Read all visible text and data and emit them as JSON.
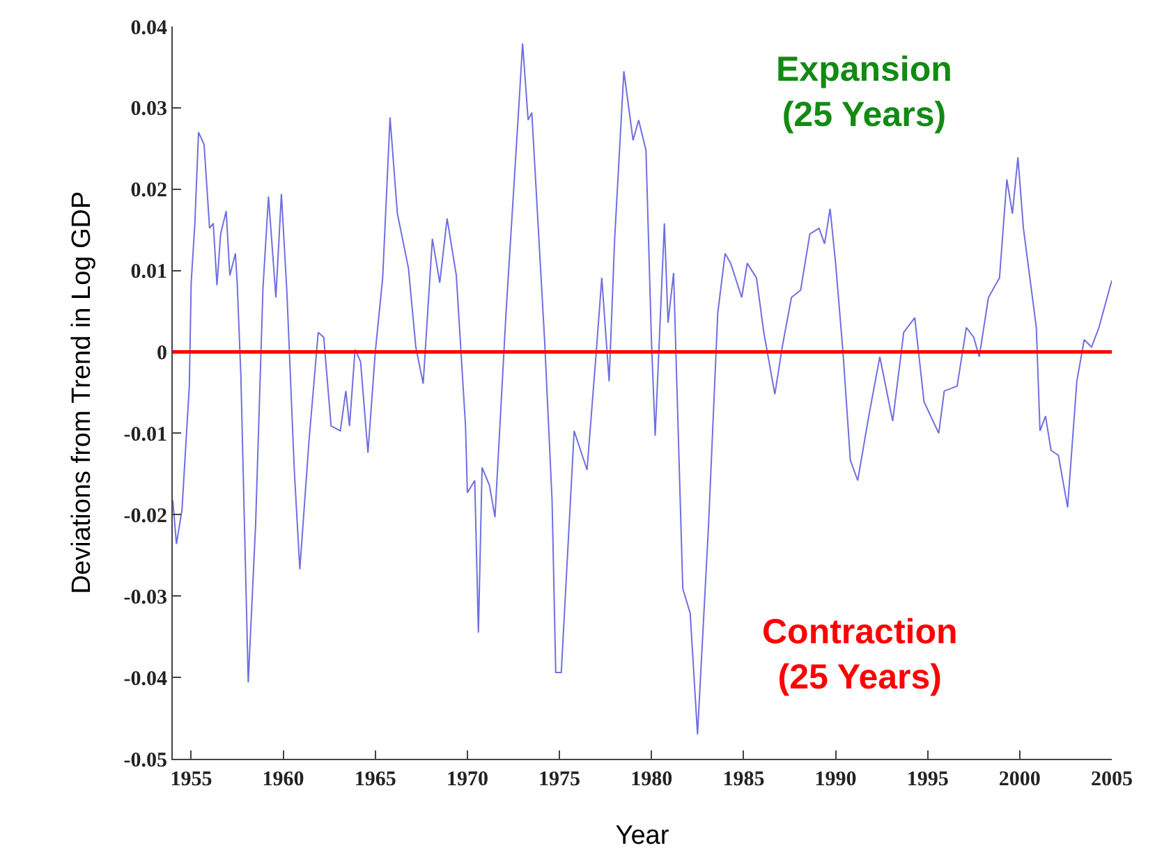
{
  "chart_data": {
    "type": "line",
    "xlabel": "Year",
    "ylabel": "Deviations from Trend in Log GDP",
    "annotations": [
      "Expansion\n(25 Years)",
      "Contraction\n(25 Years)"
    ],
    "x": [
      1954.0,
      1954.2,
      1954.5,
      1954.9,
      1955.0,
      1955.2,
      1955.4,
      1955.7,
      1956.0,
      1956.2,
      1956.4,
      1956.6,
      1956.9,
      1957.1,
      1957.4,
      1957.5,
      1957.7,
      1958.1,
      1958.5,
      1958.9,
      1959.2,
      1959.6,
      1959.9,
      1960.2,
      1960.6,
      1960.9,
      1961.4,
      1961.9,
      1962.2,
      1962.6,
      1963.1,
      1963.4,
      1963.6,
      1963.9,
      1964.2,
      1964.6,
      1965.0,
      1965.4,
      1965.8,
      1966.2,
      1966.8,
      1967.2,
      1967.6,
      1968.1,
      1968.5,
      1968.9,
      1969.4,
      1969.9,
      1970.0,
      1970.4,
      1970.6,
      1970.8,
      1971.2,
      1971.5,
      1972.1,
      1972.8,
      1973.0,
      1973.3,
      1973.5,
      1974.2,
      1974.6,
      1974.8,
      1975.1,
      1975.8,
      1976.5,
      1977.0,
      1977.3,
      1977.7,
      1978.0,
      1978.5,
      1979.0,
      1979.3,
      1979.7,
      1980.0,
      1980.2,
      1980.7,
      1980.9,
      1981.2,
      1981.7,
      1982.1,
      1982.5,
      1983.1,
      1983.6,
      1984.0,
      1984.3,
      1984.9,
      1985.2,
      1985.7,
      1986.1,
      1986.7,
      1987.1,
      1987.6,
      1988.1,
      1988.6,
      1989.1,
      1989.4,
      1989.7,
      1990.0,
      1990.4,
      1990.8,
      1991.2,
      1991.8,
      1992.4,
      1993.1,
      1993.7,
      1994.3,
      1994.8,
      1995.6,
      1995.9,
      1996.6,
      1997.1,
      1997.5,
      1997.8,
      1998.3,
      1998.9,
      1999.3,
      1999.6,
      1999.9,
      2000.2,
      2000.9,
      2001.1,
      2001.4,
      2001.7,
      2002.1,
      2002.6,
      2003.1,
      2003.5,
      2003.9,
      2004.3,
      2005.0
    ],
    "series": [
      {
        "color": "#6f6fe0",
        "values": [
          -0.0182,
          -0.0236,
          -0.0194,
          -0.0042,
          0.0085,
          0.0158,
          0.027,
          0.0255,
          0.0152,
          0.0158,
          0.0082,
          0.0145,
          0.0173,
          0.0094,
          0.0121,
          0.0085,
          -0.003,
          -0.0406,
          -0.0212,
          0.0079,
          0.0191,
          0.0067,
          0.0194,
          0.0073,
          -0.0145,
          -0.0267,
          -0.0109,
          0.0024,
          0.0018,
          -0.0091,
          -0.0097,
          -0.0048,
          -0.0091,
          0.0003,
          -0.0012,
          -0.0124,
          0.0,
          0.0091,
          0.0288,
          0.017,
          0.0103,
          0.0006,
          -0.0039,
          0.0139,
          0.0085,
          0.0164,
          0.0094,
          -0.0091,
          -0.0173,
          -0.0158,
          -0.0345,
          -0.0142,
          -0.0164,
          -0.0203,
          0.0048,
          0.0303,
          0.0379,
          0.0285,
          0.0294,
          0.0012,
          -0.0182,
          -0.0394,
          -0.0394,
          -0.0097,
          -0.0145,
          0.0,
          0.0091,
          -0.0036,
          0.0139,
          0.0345,
          0.026,
          0.0285,
          0.0248,
          0.0012,
          -0.0103,
          0.0158,
          0.0036,
          0.0097,
          -0.0291,
          -0.0321,
          -0.047,
          -0.0212,
          0.0048,
          0.0121,
          0.0109,
          0.0067,
          0.0109,
          0.0091,
          0.0024,
          -0.0052,
          0.0006,
          0.0067,
          0.0076,
          0.0145,
          0.0152,
          0.0133,
          0.0176,
          0.0109,
          0.0,
          -0.0133,
          -0.0158,
          -0.0079,
          -0.0006,
          -0.0085,
          0.0024,
          0.0042,
          -0.0061,
          -0.01,
          -0.0048,
          -0.0042,
          0.003,
          0.0018,
          -0.0006,
          0.0067,
          0.0091,
          0.0212,
          0.017,
          0.0239,
          0.0152,
          0.003,
          -0.0097,
          -0.0079,
          -0.0121,
          -0.0127,
          -0.0191,
          -0.0036,
          0.0015,
          0.0006,
          0.003,
          0.0088
        ]
      }
    ],
    "ref_lines": [
      {
        "axis": "y",
        "value": 0,
        "color": "#ff0000"
      }
    ],
    "xlim": [
      1954.0,
      2005.0
    ],
    "xticks": [
      1955,
      1960,
      1965,
      1970,
      1975,
      1980,
      1985,
      1990,
      1995,
      2000,
      2005
    ],
    "ylim": [
      -0.05,
      0.04
    ],
    "yticks": [
      -0.05,
      -0.04,
      -0.03,
      -0.02,
      -0.01,
      0,
      0.01,
      0.02,
      0.03,
      0.04
    ],
    "marker": "none"
  }
}
